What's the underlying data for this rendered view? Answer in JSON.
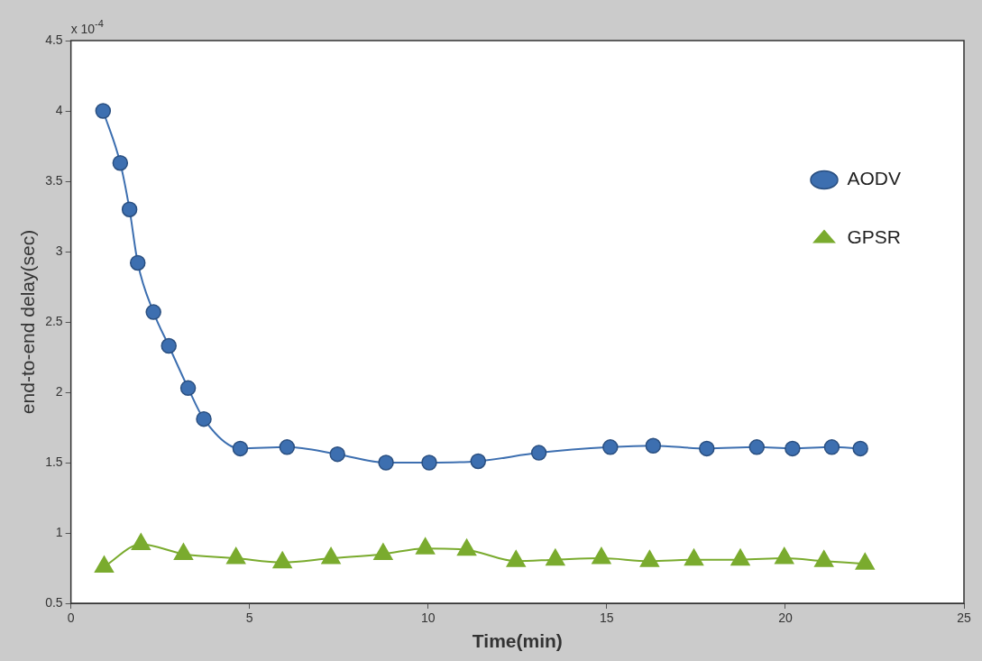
{
  "chart_data": {
    "type": "line",
    "xlabel": "Time(min)",
    "ylabel": "end-to-end delay(sec)",
    "annotations": [
      "x 10$^{-4}$"
    ],
    "xlim": [
      0,
      25
    ],
    "xticks": [
      0,
      5,
      10,
      15,
      20,
      25
    ],
    "ylim": [
      0.5,
      4.5
    ],
    "yticks": [
      0.5,
      1,
      1.5,
      2,
      2.5,
      3,
      3.5,
      4,
      4.5
    ],
    "grid": false,
    "legend": "top right",
    "series": [
      {
        "name": "AODV",
        "color": "#3d6fb0",
        "marker": "circle",
        "x": [
          0.9,
          1.38,
          1.64,
          1.87,
          2.31,
          2.74,
          3.28,
          3.72,
          4.74,
          6.05,
          7.46,
          8.82,
          10.03,
          11.4,
          13.1,
          15.1,
          16.3,
          17.8,
          19.2,
          20.2,
          21.3,
          22.1
        ],
        "values": [
          4.0,
          3.63,
          3.3,
          2.92,
          2.57,
          2.33,
          2.03,
          1.81,
          1.6,
          1.61,
          1.56,
          1.5,
          1.5,
          1.51,
          1.57,
          1.61,
          1.62,
          1.6,
          1.61,
          1.6,
          1.61,
          1.6
        ]
      },
      {
        "name": "GPSR",
        "color": "#7aab2e",
        "marker": "triangle",
        "x": [
          0.93,
          1.96,
          3.15,
          4.62,
          5.92,
          7.28,
          8.74,
          9.92,
          11.08,
          12.46,
          13.56,
          14.85,
          16.2,
          17.44,
          18.74,
          19.97,
          21.08,
          22.23
        ],
        "values": [
          0.76,
          0.92,
          0.85,
          0.82,
          0.79,
          0.82,
          0.85,
          0.89,
          0.88,
          0.8,
          0.81,
          0.82,
          0.8,
          0.81,
          0.81,
          0.82,
          0.8,
          0.78
        ]
      }
    ]
  }
}
